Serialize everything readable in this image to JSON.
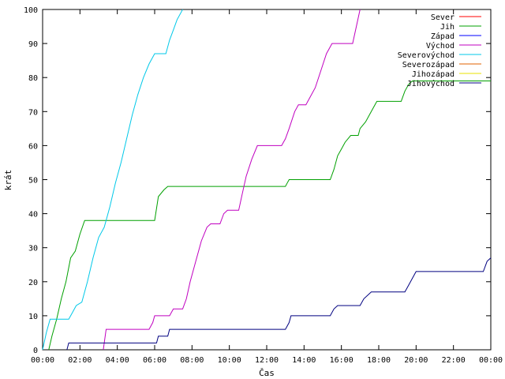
{
  "chart_data": {
    "type": "line",
    "xlabel": "Čas",
    "ylabel": "krát",
    "xlim": [
      0,
      24
    ],
    "ylim": [
      0,
      100
    ],
    "x_ticks": [
      {
        "value": 0,
        "label": "00:00"
      },
      {
        "value": 2,
        "label": "02:00"
      },
      {
        "value": 4,
        "label": "04:00"
      },
      {
        "value": 6,
        "label": "06:00"
      },
      {
        "value": 8,
        "label": "08:00"
      },
      {
        "value": 10,
        "label": "10:00"
      },
      {
        "value": 12,
        "label": "12:00"
      },
      {
        "value": 14,
        "label": "14:00"
      },
      {
        "value": 16,
        "label": "16:00"
      },
      {
        "value": 18,
        "label": "18:00"
      },
      {
        "value": 20,
        "label": "20:00"
      },
      {
        "value": 22,
        "label": "22:00"
      },
      {
        "value": 24,
        "label": "00:00"
      }
    ],
    "y_ticks": [
      0,
      10,
      20,
      30,
      40,
      50,
      60,
      70,
      80,
      90,
      100
    ],
    "grid": false,
    "legend_position": "top-right",
    "series": [
      {
        "name": "Sever",
        "color": "#ff0000",
        "points": []
      },
      {
        "name": "Jih",
        "color": "#00a000",
        "points": [
          [
            0.33,
            0
          ],
          [
            0.5,
            4
          ],
          [
            0.75,
            9
          ],
          [
            1.0,
            15
          ],
          [
            1.25,
            20
          ],
          [
            1.5,
            27
          ],
          [
            1.75,
            29
          ],
          [
            2.0,
            34
          ],
          [
            2.25,
            38
          ],
          [
            2.5,
            38
          ],
          [
            6.0,
            38
          ],
          [
            6.2,
            45
          ],
          [
            6.5,
            47
          ],
          [
            6.7,
            48
          ],
          [
            7.0,
            48
          ],
          [
            13.0,
            48
          ],
          [
            13.1,
            49
          ],
          [
            13.2,
            50
          ],
          [
            15.4,
            50
          ],
          [
            15.6,
            53
          ],
          [
            15.8,
            57
          ],
          [
            16.0,
            59
          ],
          [
            16.2,
            61
          ],
          [
            16.5,
            63
          ],
          [
            16.9,
            63
          ],
          [
            17.0,
            65
          ],
          [
            17.3,
            67
          ],
          [
            17.6,
            70
          ],
          [
            17.9,
            73
          ],
          [
            19.2,
            73
          ],
          [
            19.4,
            76
          ],
          [
            19.6,
            78
          ],
          [
            19.8,
            79
          ],
          [
            24.0,
            79
          ]
        ]
      },
      {
        "name": "Západ",
        "color": "#0000ff",
        "points": []
      },
      {
        "name": "Východ",
        "color": "#c000c0",
        "points": [
          [
            3.25,
            0
          ],
          [
            3.4,
            6
          ],
          [
            5.7,
            6
          ],
          [
            5.9,
            8
          ],
          [
            6.0,
            10
          ],
          [
            6.8,
            10
          ],
          [
            7.0,
            12
          ],
          [
            7.5,
            12
          ],
          [
            7.7,
            15
          ],
          [
            7.9,
            20
          ],
          [
            8.2,
            26
          ],
          [
            8.5,
            32
          ],
          [
            8.8,
            36
          ],
          [
            9.0,
            37
          ],
          [
            9.5,
            37
          ],
          [
            9.7,
            40
          ],
          [
            9.9,
            41
          ],
          [
            10.5,
            41
          ],
          [
            10.7,
            46
          ],
          [
            10.9,
            51
          ],
          [
            11.2,
            56
          ],
          [
            11.5,
            60
          ],
          [
            12.8,
            60
          ],
          [
            13.0,
            62
          ],
          [
            13.2,
            65
          ],
          [
            13.5,
            70
          ],
          [
            13.7,
            72
          ],
          [
            14.1,
            72
          ],
          [
            14.3,
            74
          ],
          [
            14.6,
            77
          ],
          [
            14.9,
            82
          ],
          [
            15.2,
            87
          ],
          [
            15.5,
            90
          ],
          [
            16.6,
            90
          ],
          [
            16.8,
            95
          ],
          [
            17.0,
            100
          ]
        ]
      },
      {
        "name": "Severovýchod",
        "color": "#00c8e8",
        "points": [
          [
            0.0,
            0
          ],
          [
            0.2,
            5
          ],
          [
            0.4,
            9
          ],
          [
            1.4,
            9
          ],
          [
            1.6,
            11
          ],
          [
            1.8,
            13
          ],
          [
            2.1,
            14
          ],
          [
            2.4,
            20
          ],
          [
            2.7,
            27
          ],
          [
            3.0,
            33
          ],
          [
            3.3,
            36
          ],
          [
            3.6,
            42
          ],
          [
            3.9,
            49
          ],
          [
            4.2,
            55
          ],
          [
            4.5,
            62
          ],
          [
            4.8,
            69
          ],
          [
            5.1,
            75
          ],
          [
            5.4,
            80
          ],
          [
            5.7,
            84
          ],
          [
            6.0,
            87
          ],
          [
            6.6,
            87
          ],
          [
            6.8,
            91
          ],
          [
            7.0,
            94
          ],
          [
            7.2,
            97
          ],
          [
            7.5,
            100
          ]
        ]
      },
      {
        "name": "Severozápad",
        "color": "#e06000",
        "points": []
      },
      {
        "name": "Jihozápad",
        "color": "#e8e000",
        "points": []
      },
      {
        "name": "Jihovýchod",
        "color": "#000080",
        "points": [
          [
            1.3,
            0
          ],
          [
            1.4,
            2
          ],
          [
            6.1,
            2
          ],
          [
            6.2,
            4
          ],
          [
            6.7,
            4
          ],
          [
            6.8,
            6
          ],
          [
            13.0,
            6
          ],
          [
            13.2,
            8
          ],
          [
            13.3,
            10
          ],
          [
            15.4,
            10
          ],
          [
            15.6,
            12
          ],
          [
            15.8,
            13
          ],
          [
            17.0,
            13
          ],
          [
            17.2,
            15
          ],
          [
            17.6,
            17
          ],
          [
            19.4,
            17
          ],
          [
            19.6,
            19
          ],
          [
            19.8,
            21
          ],
          [
            20.0,
            23
          ],
          [
            23.6,
            23
          ],
          [
            23.8,
            26
          ],
          [
            24.0,
            27
          ]
        ]
      }
    ]
  }
}
